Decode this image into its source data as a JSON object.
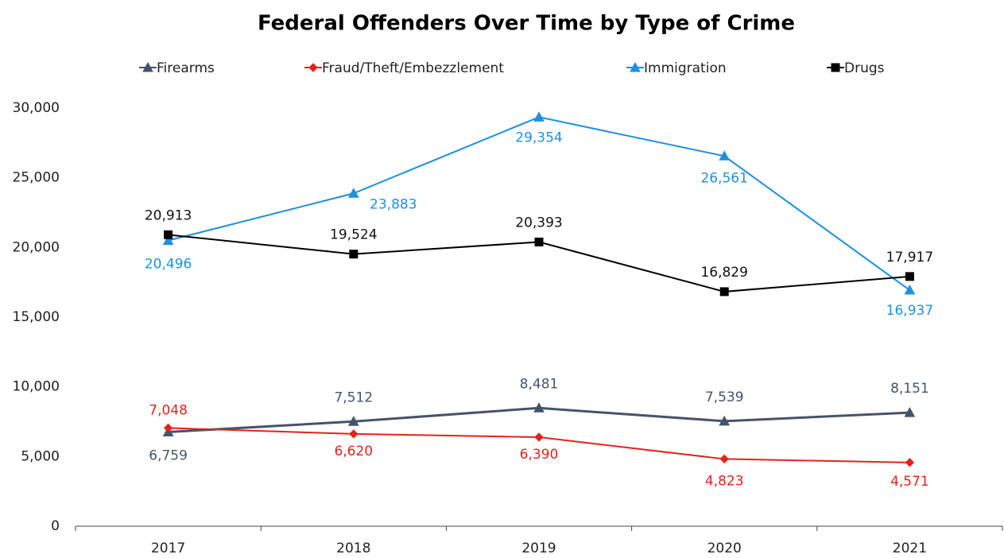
{
  "chart_data": {
    "type": "line",
    "title": "Federal Offenders Over Time by Type of Crime",
    "categories": [
      "2017",
      "2018",
      "2019",
      "2020",
      "2021"
    ],
    "series": [
      {
        "name": "Firearms",
        "color": "#44546a",
        "marker": "triangle",
        "values": [
          6759,
          7512,
          8481,
          7539,
          8151
        ],
        "value_labels": [
          "6,759",
          "7,512",
          "8,481",
          "7,539",
          "8,151"
        ]
      },
      {
        "name": "Fraud/Theft/Embezzlement",
        "color": "#e0241b",
        "marker": "diamond",
        "values": [
          7048,
          6620,
          6390,
          4823,
          4571
        ],
        "value_labels": [
          "7,048",
          "6,620",
          "6,390",
          "4,823",
          "4,571"
        ]
      },
      {
        "name": "Immigration",
        "color": "#1e8fe1",
        "marker": "triangle",
        "values": [
          20496,
          23883,
          29354,
          26561,
          16937
        ],
        "value_labels": [
          "20,496",
          "23,883",
          "29,354",
          "26,561",
          "16,937"
        ]
      },
      {
        "name": "Drugs",
        "color": "#000000",
        "marker": "square",
        "values": [
          20913,
          19524,
          20393,
          16829,
          17917
        ],
        "value_labels": [
          "20,913",
          "19,524",
          "20,393",
          "16,829",
          "17,917"
        ]
      }
    ],
    "ylim": [
      0,
      30000
    ],
    "yticks": [
      0,
      {
        "value": 5000,
        "label": "5,000"
      },
      {
        "value": 10000,
        "label": "10,000"
      },
      {
        "value": 15000,
        "label": "15,000"
      },
      {
        "value": 20000,
        "label": "20,000"
      },
      {
        "value": 25000,
        "label": "25,000"
      },
      {
        "value": 30000,
        "label": "30,000"
      }
    ],
    "grid": false,
    "legend": "top"
  }
}
